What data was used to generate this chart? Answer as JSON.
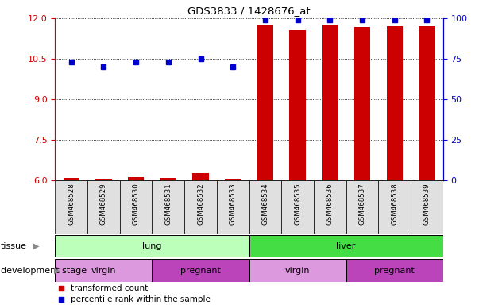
{
  "title": "GDS3833 / 1428676_at",
  "samples": [
    "GSM468528",
    "GSM468529",
    "GSM468530",
    "GSM468531",
    "GSM468532",
    "GSM468533",
    "GSM468534",
    "GSM468535",
    "GSM468536",
    "GSM468537",
    "GSM468538",
    "GSM468539"
  ],
  "transformed_count": [
    6.08,
    6.05,
    6.1,
    6.08,
    6.25,
    6.05,
    11.75,
    11.55,
    11.78,
    11.68,
    11.72,
    11.7
  ],
  "percentile_rank": [
    73,
    70,
    73,
    73,
    75,
    70,
    99,
    99,
    99,
    99,
    99,
    99
  ],
  "ylim_left": [
    6,
    12
  ],
  "ylim_right": [
    0,
    100
  ],
  "yticks_left": [
    6,
    7.5,
    9,
    10.5,
    12
  ],
  "yticks_right": [
    0,
    25,
    50,
    75,
    100
  ],
  "bar_color": "#cc0000",
  "dot_color": "#0000cc",
  "tissue_groups": [
    {
      "label": "lung",
      "start": 0,
      "end": 6,
      "color": "#bbffbb"
    },
    {
      "label": "liver",
      "start": 6,
      "end": 12,
      "color": "#44dd44"
    }
  ],
  "dev_stage_groups": [
    {
      "label": "virgin",
      "start": 0,
      "end": 3,
      "color": "#dd99dd"
    },
    {
      "label": "pregnant",
      "start": 3,
      "end": 6,
      "color": "#bb44bb"
    },
    {
      "label": "virgin",
      "start": 6,
      "end": 9,
      "color": "#dd99dd"
    },
    {
      "label": "pregnant",
      "start": 9,
      "end": 12,
      "color": "#bb44bb"
    }
  ],
  "legend_items": [
    {
      "label": "transformed count",
      "color": "#cc0000"
    },
    {
      "label": "percentile rank within the sample",
      "color": "#0000cc"
    }
  ],
  "left_axis_color": "#cc0000",
  "right_axis_color": "#0000cc"
}
